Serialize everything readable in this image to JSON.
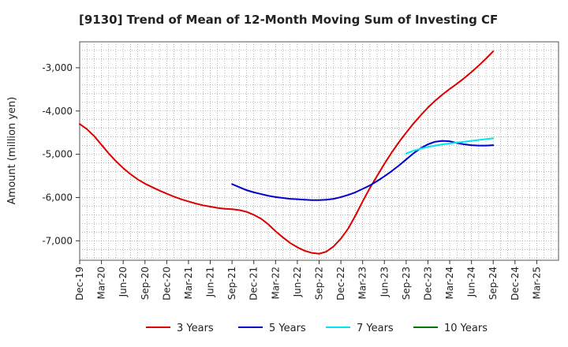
{
  "chart_data": {
    "type": "line",
    "title": "[9130]  Trend of Mean of 12-Month Moving Sum of Investing CF",
    "xlabel": "",
    "ylabel": "Amount (million yen)",
    "ylim": [
      -7450,
      -2400
    ],
    "yticks": [
      -3000,
      -4000,
      -5000,
      -6000,
      -7000
    ],
    "ytick_labels": [
      "-3,000",
      "-4,000",
      "-5,000",
      "-6,000",
      "-7,000"
    ],
    "x_start_month": "Dec-19",
    "x_months_span": 66,
    "xtick_labels": [
      "Dec-19",
      "Mar-20",
      "Jun-20",
      "Sep-20",
      "Dec-20",
      "Mar-21",
      "Jun-21",
      "Sep-21",
      "Dec-21",
      "Mar-22",
      "Jun-22",
      "Sep-22",
      "Dec-22",
      "Mar-23",
      "Jun-23",
      "Sep-23",
      "Dec-23",
      "Mar-24",
      "Jun-24",
      "Sep-24",
      "Dec-24",
      "Mar-25"
    ],
    "grid": true,
    "legend_position": "bottom",
    "series": [
      {
        "name": "3 Years",
        "color": "#dd0000",
        "start_index": 0,
        "values": [
          -4300,
          -4420,
          -4580,
          -4780,
          -4980,
          -5160,
          -5320,
          -5460,
          -5580,
          -5680,
          -5760,
          -5840,
          -5910,
          -5980,
          -6040,
          -6090,
          -6140,
          -6180,
          -6210,
          -6240,
          -6260,
          -6270,
          -6290,
          -6330,
          -6400,
          -6490,
          -6620,
          -6780,
          -6920,
          -7050,
          -7150,
          -7230,
          -7280,
          -7300,
          -7250,
          -7130,
          -6950,
          -6720,
          -6420,
          -6090,
          -5780,
          -5500,
          -5220,
          -4960,
          -4720,
          -4500,
          -4290,
          -4100,
          -3920,
          -3760,
          -3620,
          -3490,
          -3370,
          -3240,
          -3100,
          -2950,
          -2790,
          -2620
        ]
      },
      {
        "name": "5 Years",
        "color": "#0000cc",
        "start_index": 21,
        "values": [
          -5690,
          -5760,
          -5830,
          -5880,
          -5920,
          -5960,
          -5990,
          -6010,
          -6030,
          -6040,
          -6050,
          -6060,
          -6060,
          -6050,
          -6030,
          -5990,
          -5940,
          -5880,
          -5800,
          -5720,
          -5620,
          -5510,
          -5390,
          -5260,
          -5120,
          -4980,
          -4860,
          -4770,
          -4710,
          -4690,
          -4700,
          -4740,
          -4770,
          -4790,
          -4800,
          -4800,
          -4790
        ]
      },
      {
        "name": "7 Years",
        "color": "#00e5ee",
        "start_index": 45,
        "values": [
          -4980,
          -4920,
          -4870,
          -4830,
          -4800,
          -4770,
          -4750,
          -4730,
          -4710,
          -4690,
          -4670,
          -4650,
          -4630
        ]
      },
      {
        "name": "10 Years",
        "color": "#007700",
        "start_index": null,
        "values": []
      }
    ]
  }
}
